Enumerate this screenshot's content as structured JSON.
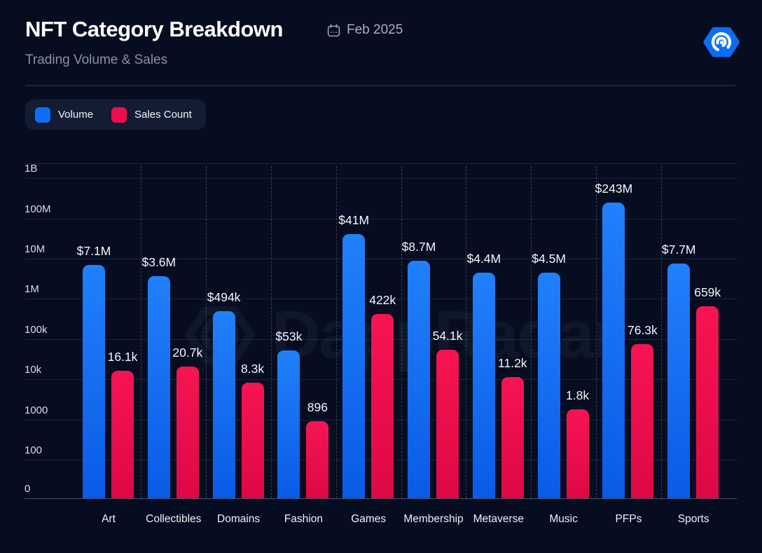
{
  "header": {
    "title": "NFT Category Breakdown",
    "subtitle": "Trading Volume & Sales",
    "date": "Feb 2025"
  },
  "legend": {
    "items": [
      {
        "label": "Volume",
        "color": "#0d6ef5"
      },
      {
        "label": "Sales Count",
        "color": "#ee0d4c"
      }
    ]
  },
  "watermark": {
    "text": "DappRadar"
  },
  "brand": {
    "logo_color": "#0b6cf4",
    "icon": "dappradar-hexagon-radar"
  },
  "chart_data": {
    "type": "bar",
    "title": "NFT Category Breakdown",
    "subtitle": "Trading Volume & Sales",
    "period": "Feb 2025",
    "y_scale": "log",
    "grid": "horizontal solid, vertical dashed category separators",
    "legend_position": "top-left",
    "categories": [
      "Art",
      "Collectibles",
      "Domains",
      "Fashion",
      "Games",
      "Membership",
      "Metaverse",
      "Music",
      "PFPs",
      "Sports"
    ],
    "series": [
      {
        "name": "Volume",
        "color_top": "#2180fb",
        "color_bottom": "#0a5be6",
        "values": [
          7100000,
          3600000,
          494000,
          53000,
          41000000,
          8700000,
          4400000,
          4500000,
          243000000,
          7700000
        ],
        "labels": [
          "$7.1M",
          "$3.6M",
          "$494k",
          "$53k",
          "$41M",
          "$8.7M",
          "$4.4M",
          "$4.5M",
          "$243M",
          "$7.7M"
        ]
      },
      {
        "name": "Sales Count",
        "color_top": "#f71453",
        "color_bottom": "#dd0845",
        "values": [
          16100,
          20700,
          8300,
          896,
          422000,
          54100,
          11200,
          1800,
          76300,
          659000
        ],
        "labels": [
          "16.1k",
          "20.7k",
          "8.3k",
          "896",
          "422k",
          "54.1k",
          "11.2k",
          "1.8k",
          "76.3k",
          "659k"
        ]
      }
    ],
    "y_ticks": [
      {
        "label": "0",
        "value": 0
      },
      {
        "label": "100",
        "value": 100
      },
      {
        "label": "1000",
        "value": 1000
      },
      {
        "label": "10k",
        "value": 10000
      },
      {
        "label": "100k",
        "value": 100000
      },
      {
        "label": "1M",
        "value": 1000000
      },
      {
        "label": "10M",
        "value": 10000000
      },
      {
        "label": "100M",
        "value": 100000000
      },
      {
        "label": "1B",
        "value": 1000000000
      }
    ]
  }
}
